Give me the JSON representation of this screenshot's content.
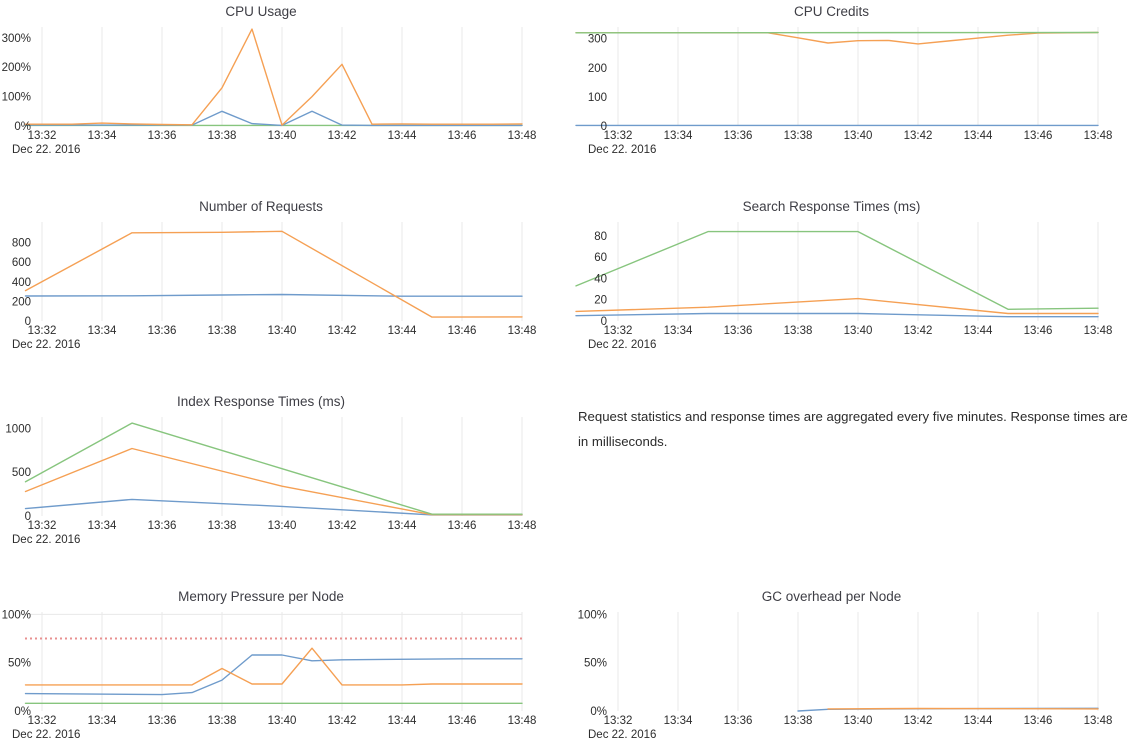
{
  "page": {
    "background": "#ffffff"
  },
  "palette": {
    "blue": "#6f9bcb",
    "orange": "#f5a054",
    "green": "#87c57e",
    "red_dashed": "#e89090",
    "grid": "#e8e8e8",
    "tick_text": "#2d2d2d",
    "title_text": "#3e3e45"
  },
  "x_axis": {
    "tick_labels": [
      "13:32",
      "13:34",
      "13:36",
      "13:38",
      "13:40",
      "13:42",
      "13:44",
      "13:46",
      "13:48"
    ],
    "tick_minutes": [
      32,
      34,
      36,
      38,
      40,
      42,
      44,
      46,
      48
    ],
    "date_label": "Dec 22. 2016"
  },
  "note": {
    "text": "Request statistics and response times are aggregated every five minutes. Response times are in milliseconds."
  },
  "chart_data": [
    {
      "title": "CPU Usage",
      "type": "line",
      "column": "left",
      "row": 0,
      "ymax": 337,
      "xlim": [
        "13:32",
        "13:48"
      ],
      "grid": "vertical",
      "legend": "none",
      "y_ticks": [
        {
          "v": 0,
          "label": "0%"
        },
        {
          "v": 100,
          "label": "100%"
        },
        {
          "v": 200,
          "label": "200%"
        },
        {
          "v": 300,
          "label": "300%"
        }
      ],
      "series": [
        {
          "name": "series-green",
          "color": "green",
          "points": [
            [
              31.45,
              2
            ],
            [
              48,
              2
            ]
          ]
        },
        {
          "name": "series-blue",
          "color": "blue",
          "points": [
            [
              31.45,
              3
            ],
            [
              37,
              3
            ],
            [
              38,
              50
            ],
            [
              39,
              8
            ],
            [
              40,
              2
            ],
            [
              41,
              50
            ],
            [
              42,
              3
            ],
            [
              43,
              2
            ],
            [
              48,
              2
            ]
          ]
        },
        {
          "name": "series-orange",
          "color": "orange",
          "points": [
            [
              31.45,
              6
            ],
            [
              33,
              6
            ],
            [
              34,
              10
            ],
            [
              35,
              7
            ],
            [
              36,
              5
            ],
            [
              37,
              4
            ],
            [
              38,
              130
            ],
            [
              39,
              330
            ],
            [
              40,
              3
            ],
            [
              41,
              100
            ],
            [
              42,
              210
            ],
            [
              43,
              6
            ],
            [
              44,
              7
            ],
            [
              45,
              6
            ],
            [
              46,
              6
            ],
            [
              47,
              6
            ],
            [
              48,
              7
            ]
          ]
        }
      ]
    },
    {
      "title": "CPU Credits",
      "type": "line",
      "column": "right",
      "row": 0,
      "ymax": 340,
      "xlim": [
        "13:32",
        "13:48"
      ],
      "grid": "vertical",
      "legend": "none",
      "y_ticks": [
        {
          "v": 0,
          "label": "0"
        },
        {
          "v": 100,
          "label": "100"
        },
        {
          "v": 200,
          "label": "200"
        },
        {
          "v": 300,
          "label": "300"
        }
      ],
      "series": [
        {
          "name": "series-blue",
          "color": "blue",
          "points": [
            [
              30.6,
              2
            ],
            [
              48,
              2
            ]
          ]
        },
        {
          "name": "series-orange",
          "color": "orange",
          "points": [
            [
              30.6,
              320
            ],
            [
              37,
              320
            ],
            [
              38,
              303
            ],
            [
              39,
              285
            ],
            [
              40,
              293
            ],
            [
              41,
              294
            ],
            [
              42,
              282
            ],
            [
              43,
              292
            ],
            [
              44,
              302
            ],
            [
              45,
              312
            ],
            [
              46,
              319
            ],
            [
              47,
              320
            ],
            [
              48,
              321
            ]
          ]
        },
        {
          "name": "series-green",
          "color": "green",
          "points": [
            [
              30.6,
              320
            ],
            [
              48,
              321
            ]
          ]
        }
      ]
    },
    {
      "title": "Number of Requests",
      "type": "line",
      "column": "left",
      "row": 1,
      "ymax": 1010,
      "xlim": [
        "13:32",
        "13:48"
      ],
      "grid": "vertical",
      "legend": "none",
      "y_ticks": [
        {
          "v": 0,
          "label": "0"
        },
        {
          "v": 200,
          "label": "200"
        },
        {
          "v": 400,
          "label": "400"
        },
        {
          "v": 600,
          "label": "600"
        },
        {
          "v": 800,
          "label": "800"
        }
      ],
      "series": [
        {
          "name": "series-blue",
          "color": "blue",
          "points": [
            [
              31.45,
              255
            ],
            [
              35,
              257
            ],
            [
              38,
              265
            ],
            [
              40,
              270
            ],
            [
              44,
              253
            ],
            [
              48,
              253
            ]
          ]
        },
        {
          "name": "series-orange",
          "color": "orange",
          "points": [
            [
              31.45,
              310
            ],
            [
              35,
              900
            ],
            [
              38,
              905
            ],
            [
              40,
              915
            ],
            [
              45,
              40
            ],
            [
              48,
              42
            ]
          ]
        }
      ]
    },
    {
      "title": "Search Response Times (ms)",
      "type": "line",
      "column": "right",
      "row": 1,
      "ymax": 93,
      "xlim": [
        "13:32",
        "13:48"
      ],
      "grid": "vertical",
      "legend": "none",
      "y_ticks": [
        {
          "v": 0,
          "label": "0"
        },
        {
          "v": 20,
          "label": "20"
        },
        {
          "v": 40,
          "label": "40"
        },
        {
          "v": 60,
          "label": "60"
        },
        {
          "v": 80,
          "label": "80"
        }
      ],
      "series": [
        {
          "name": "series-blue",
          "color": "blue",
          "points": [
            [
              30.6,
              5
            ],
            [
              35,
              7
            ],
            [
              40,
              7
            ],
            [
              45,
              4
            ],
            [
              48,
              4
            ]
          ]
        },
        {
          "name": "series-orange",
          "color": "orange",
          "points": [
            [
              30.6,
              9
            ],
            [
              35,
              13
            ],
            [
              40,
              21
            ],
            [
              45,
              7
            ],
            [
              48,
              7
            ]
          ]
        },
        {
          "name": "series-green",
          "color": "green",
          "points": [
            [
              30.6,
              33
            ],
            [
              35,
              84
            ],
            [
              40,
              84
            ],
            [
              45,
              11
            ],
            [
              48,
              12
            ]
          ]
        }
      ]
    },
    {
      "title": "Index Response Times (ms)",
      "type": "line",
      "column": "left",
      "row": 2,
      "ymax": 1130,
      "xlim": [
        "13:32",
        "13:48"
      ],
      "grid": "vertical",
      "legend": "none",
      "y_ticks": [
        {
          "v": 0,
          "label": "0"
        },
        {
          "v": 500,
          "label": "500"
        },
        {
          "v": 1000,
          "label": "1000"
        }
      ],
      "series": [
        {
          "name": "series-blue",
          "color": "blue",
          "points": [
            [
              31.45,
              85
            ],
            [
              35,
              190
            ],
            [
              40,
              110
            ],
            [
              45,
              12
            ],
            [
              48,
              12
            ]
          ]
        },
        {
          "name": "series-orange",
          "color": "orange",
          "points": [
            [
              31.45,
              280
            ],
            [
              35,
              770
            ],
            [
              40,
              340
            ],
            [
              45,
              15
            ],
            [
              48,
              15
            ]
          ]
        },
        {
          "name": "series-green",
          "color": "green",
          "points": [
            [
              31.45,
              390
            ],
            [
              35,
              1060
            ],
            [
              40,
              540
            ],
            [
              45,
              20
            ],
            [
              48,
              20
            ]
          ]
        }
      ]
    },
    {
      "title": "Memory Pressure per Node",
      "type": "line",
      "column": "left",
      "row": 3,
      "ymax": 102.5,
      "xlim": [
        "13:32",
        "13:48"
      ],
      "grid": "vertical",
      "legend": "none",
      "top_gridline": true,
      "threshold": {
        "value": 75,
        "style": "dotted",
        "color": "red_dashed"
      },
      "y_ticks": [
        {
          "v": 0,
          "label": "0%"
        },
        {
          "v": 50,
          "label": "50%"
        },
        {
          "v": 100,
          "label": "100%"
        }
      ],
      "series": [
        {
          "name": "series-green",
          "color": "green",
          "points": [
            [
              31.45,
              8
            ],
            [
              48,
              8
            ]
          ]
        },
        {
          "name": "series-blue",
          "color": "blue",
          "points": [
            [
              31.45,
              18
            ],
            [
              36,
              17
            ],
            [
              37,
              19
            ],
            [
              38,
              32
            ],
            [
              39,
              58
            ],
            [
              40,
              58
            ],
            [
              41,
              52
            ],
            [
              42,
              53
            ],
            [
              46,
              54
            ],
            [
              48,
              54
            ]
          ]
        },
        {
          "name": "series-orange",
          "color": "orange",
          "points": [
            [
              31.45,
              27
            ],
            [
              37,
              27
            ],
            [
              38,
              44
            ],
            [
              39,
              28
            ],
            [
              40,
              28
            ],
            [
              41,
              65
            ],
            [
              42,
              27
            ],
            [
              44,
              27
            ],
            [
              45,
              28
            ],
            [
              48,
              28
            ]
          ]
        }
      ]
    },
    {
      "title": "GC overhead per Node",
      "type": "line",
      "column": "right",
      "row": 3,
      "ymax": 102.5,
      "xlim": [
        "13:32",
        "13:48"
      ],
      "grid": "vertical",
      "legend": "none",
      "y_ticks": [
        {
          "v": 0,
          "label": "0%"
        },
        {
          "v": 50,
          "label": "50%"
        },
        {
          "v": 100,
          "label": "100%"
        }
      ],
      "series": [
        {
          "name": "series-blue",
          "color": "blue",
          "points": [
            [
              38,
              0
            ],
            [
              39,
              1.8
            ],
            [
              41,
              2.2
            ],
            [
              44,
              2.5
            ],
            [
              48,
              2.8
            ]
          ]
        },
        {
          "name": "series-orange",
          "color": "orange",
          "points": [
            [
              39,
              2.2
            ],
            [
              42,
              2.6
            ],
            [
              48,
              2.2
            ]
          ]
        }
      ]
    }
  ]
}
